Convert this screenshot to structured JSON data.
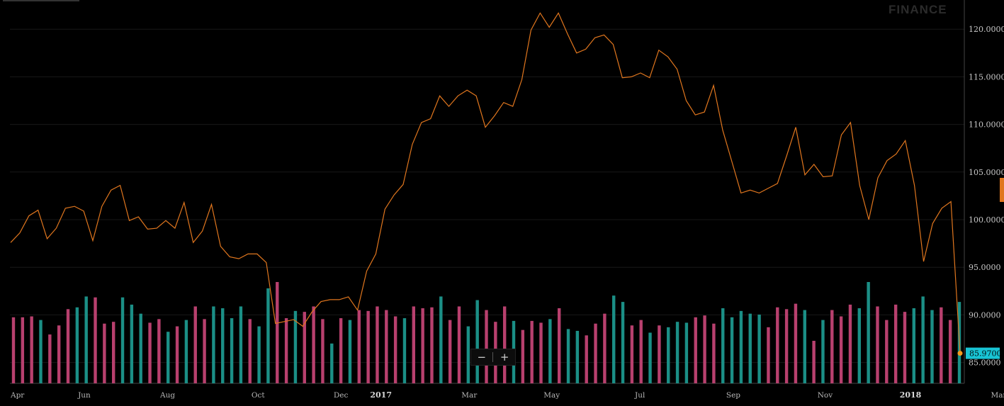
{
  "watermark": "FINANCE",
  "zoom": {
    "minus": "−",
    "plus": "+"
  },
  "colors": {
    "line": "#e0761e",
    "up": "#1b8f86",
    "down": "#b8406e",
    "last_price": "#18c4d4",
    "grid": "#181818"
  },
  "chart_data": {
    "type": "line",
    "y_axis": {
      "ticks": [
        "85.0000",
        "90.0000",
        "95.0000",
        "100.0000",
        "105.0000",
        "110.0000",
        "115.0000",
        "120.0000"
      ],
      "ylim": [
        82.3,
        124.5
      ],
      "position": "right"
    },
    "x_labels": [
      {
        "label": "Apr",
        "i": 0
      },
      {
        "label": "Jun",
        "i": 8
      },
      {
        "label": "Aug",
        "i": 17
      },
      {
        "label": "Oct",
        "i": 27
      },
      {
        "label": "Dec",
        "i": 36
      },
      {
        "label": "2017",
        "i": 40
      },
      {
        "label": "Mar",
        "i": 50
      },
      {
        "label": "May",
        "i": 59
      },
      {
        "label": "Jul",
        "i": 69
      },
      {
        "label": "Sep",
        "i": 79
      },
      {
        "label": "Nov",
        "i": 89
      },
      {
        "label": "2018",
        "i": 98
      },
      {
        "label": "Mar",
        "i": 108
      }
    ],
    "price": [
      97.6,
      98.6,
      100.4,
      101.0,
      98.0,
      99.1,
      101.2,
      101.4,
      100.9,
      97.8,
      101.4,
      103.1,
      103.6,
      99.9,
      100.3,
      99.0,
      99.1,
      99.9,
      99.1,
      101.8,
      97.6,
      98.8,
      101.6,
      97.2,
      96.1,
      95.9,
      96.4,
      96.4,
      95.5,
      89.1,
      89.3,
      89.5,
      88.8,
      90.3,
      91.4,
      91.6,
      91.6,
      91.9,
      90.5,
      94.6,
      96.4,
      101.1,
      102.6,
      103.7,
      107.9,
      110.2,
      110.6,
      113.0,
      111.9,
      113.0,
      113.6,
      113.0,
      109.7,
      110.9,
      112.3,
      111.9,
      114.7,
      119.9,
      121.7,
      120.2,
      121.7,
      119.5,
      117.5,
      117.9,
      119.1,
      119.4,
      118.4,
      114.9,
      115.0,
      115.4,
      114.9,
      117.8,
      117.1,
      115.8,
      112.5,
      111.0,
      111.3,
      114.1,
      109.4,
      106.1,
      102.8,
      103.1,
      102.8,
      103.3,
      103.8,
      106.7,
      109.7,
      104.7,
      105.8,
      104.5,
      104.6,
      108.9,
      110.2,
      103.6,
      100.0,
      104.4,
      106.2,
      106.9,
      108.3,
      103.6,
      95.6,
      99.6,
      101.2,
      101.9,
      85.97
    ],
    "last_price": "85.9700",
    "volume": {
      "bars": [
        73,
        73,
        74,
        70,
        54,
        64,
        82,
        84,
        96,
        95,
        66,
        68,
        95,
        87,
        77,
        67,
        71,
        57,
        63,
        70,
        85,
        71,
        85,
        83,
        72,
        85,
        71,
        63,
        105,
        112,
        72,
        80,
        79,
        85,
        71,
        44,
        72,
        70,
        81,
        80,
        85,
        81,
        74,
        72,
        85,
        83,
        84,
        96,
        70,
        85,
        63,
        92,
        81,
        68,
        85,
        69,
        59,
        69,
        67,
        71,
        83,
        60,
        58,
        53,
        66,
        77,
        97,
        90,
        64,
        70,
        56,
        64,
        62,
        68,
        67,
        73,
        75,
        66,
        83,
        73,
        80,
        77,
        76,
        62,
        84,
        82,
        88,
        81,
        47,
        70,
        81,
        74,
        87,
        83,
        112,
        85,
        70,
        87,
        79,
        83,
        96,
        81,
        84,
        70,
        90
      ],
      "up": [
        0,
        0,
        0,
        1,
        0,
        0,
        0,
        1,
        1,
        0,
        0,
        0,
        1,
        1,
        1,
        0,
        0,
        1,
        0,
        1,
        0,
        0,
        1,
        1,
        1,
        1,
        0,
        1,
        1,
        0,
        0,
        1,
        0,
        0,
        0,
        1,
        0,
        1,
        0,
        0,
        0,
        0,
        0,
        1,
        0,
        0,
        0,
        1,
        0,
        0,
        1,
        1,
        0,
        0,
        0,
        1,
        0,
        0,
        0,
        1,
        0,
        1,
        1,
        0,
        0,
        0,
        1,
        1,
        0,
        0,
        1,
        0,
        1,
        1,
        1,
        0,
        0,
        0,
        1,
        1,
        1,
        1,
        1,
        0,
        0,
        0,
        0,
        1,
        0,
        1,
        0,
        0,
        0,
        1,
        1,
        0,
        0,
        0,
        0,
        1,
        1,
        1,
        0,
        0,
        1
      ]
    }
  }
}
